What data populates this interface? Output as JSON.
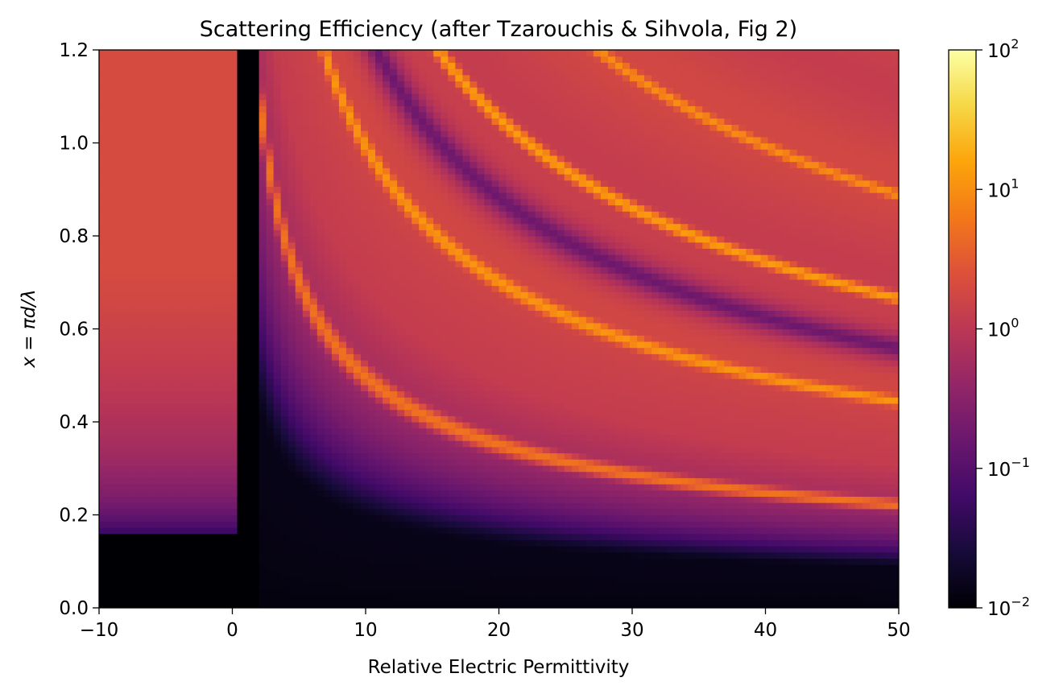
{
  "chart_data": {
    "type": "heatmap",
    "title": "Scattering Efficiency (after Tzarouchis & Sihvola, Fig 2)",
    "xlabel": "Relative Electric Permittivity",
    "ylabel": "x = πd/λ",
    "xlim": [
      -10,
      50
    ],
    "ylim": [
      0,
      1.2
    ],
    "xticks": [
      -10,
      0,
      10,
      20,
      30,
      40,
      50
    ],
    "xtick_labels": [
      "−10",
      "0",
      "10",
      "20",
      "30",
      "40",
      "50"
    ],
    "yticks": [
      0.0,
      0.2,
      0.4,
      0.6,
      0.8,
      1.0,
      1.2
    ],
    "ytick_labels": [
      "0.0",
      "0.2",
      "0.4",
      "0.6",
      "0.8",
      "1.0",
      "1.2"
    ],
    "colormap": "inferno",
    "color_scale": "log",
    "clim": [
      0.01,
      100
    ],
    "colorbar_ticks": [
      {
        "value": 100,
        "base": "10",
        "exp": "2"
      },
      {
        "value": 10,
        "base": "10",
        "exp": "1"
      },
      {
        "value": 1,
        "base": "10",
        "exp": "0"
      },
      {
        "value": 0.1,
        "base": "10",
        "exp": "−1"
      },
      {
        "value": 0.01,
        "base": "10",
        "exp": "−2"
      }
    ],
    "grid": false
  }
}
